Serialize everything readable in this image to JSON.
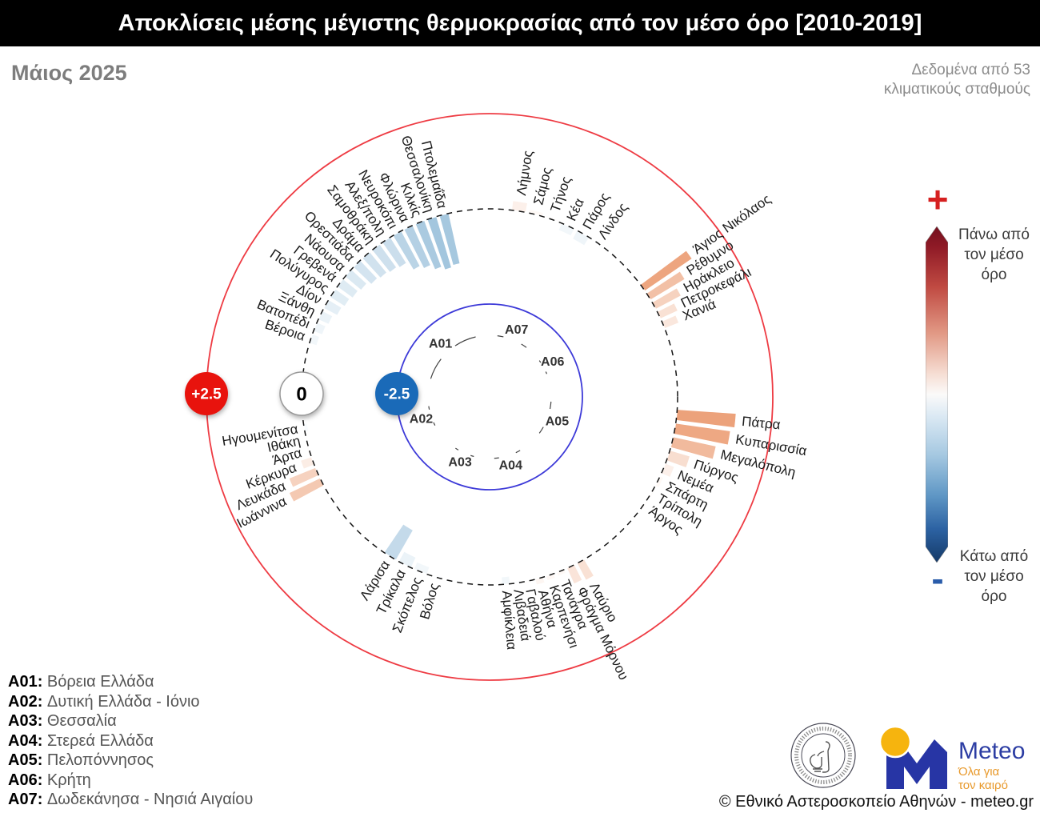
{
  "title": "Αποκλίσεις μέσης μέγιστης θερμοκρασίας από τον μέσο όρο [2010-2019]",
  "subtitle": "Μάιος 2025",
  "data_source": "Δεδομένα από 53 κλιματικούς σταθμούς",
  "scale": {
    "plus": "+",
    "minus": "-",
    "above_label": "Πάνω από τον μέσο όρο",
    "below_label": "Κάτω από τον μέσο όρο"
  },
  "footer": {
    "copyright": "© Εθνικό Αστεροσκοπείο Αθηνών - meteo.gr",
    "meteo_name": "Meteo",
    "meteo_tagline": [
      "Όλα για",
      "τον καιρό"
    ]
  },
  "chart_data": {
    "type": "radial-bar",
    "radial_axis": {
      "min": -2.5,
      "max": 2.5,
      "unit": "°C"
    },
    "rings": [
      {
        "value": 2.5,
        "label": "+2.5",
        "line_color": "#ee3b43",
        "line_style": "solid",
        "badge_bg": "#e8130d",
        "badge_text_color": "#ffffff"
      },
      {
        "value": 0,
        "label": "0",
        "line_color": "#141414",
        "line_style": "dashed",
        "badge_bg": "#ffffff",
        "badge_text_color": "#000000"
      },
      {
        "value": -2.5,
        "label": "-2.5",
        "line_color": "#3d3ad8",
        "line_style": "solid",
        "badge_bg": "#1a6ab8",
        "badge_text_color": "#ffffff"
      }
    ],
    "color_map": {
      "zero": "#ffffff",
      "positive_end": "#e1692a",
      "negative_end": "#5b99c4"
    },
    "regions": [
      {
        "code": "A01",
        "name": "Βόρεια Ελλάδα",
        "angle_start": 286.1,
        "angle_end": 347.9,
        "stations": [
          {
            "name": "Βέροια",
            "value": -0.2
          },
          {
            "name": "Βατοπέδι",
            "value": -0.25
          },
          {
            "name": "Ξάνθη",
            "value": -0.3
          },
          {
            "name": "Δίον",
            "value": -0.4
          },
          {
            "name": "Πολύγυρος",
            "value": -0.45
          },
          {
            "name": "Γρεβενά",
            "value": -0.5
          },
          {
            "name": "Νάουσα",
            "value": -0.55
          },
          {
            "name": "Ορεστιάδα",
            "value": -0.65
          },
          {
            "name": "Δράμα",
            "value": -0.7
          },
          {
            "name": "Σαμοθράκη",
            "value": -0.75
          },
          {
            "name": "Αλεξ/πολη",
            "value": -0.8
          },
          {
            "name": "Νευροκόπι",
            "value": -1.05
          },
          {
            "name": "Φλώρινα",
            "value": -1.15
          },
          {
            "name": "Κιλκίς",
            "value": -1.3
          },
          {
            "name": "Θεσσαλονίκη",
            "value": -1.4
          },
          {
            "name": "Πτολεμαΐδα",
            "value": -1.35
          }
        ]
      },
      {
        "code": "A02",
        "name": "Δυτική Ελλάδα - Ιόνιο",
        "angle_start": 241.4,
        "angle_end": 262.3,
        "stations": [
          {
            "name": "Ιωάννινα",
            "value": 0.9
          },
          {
            "name": "Λευκάδα",
            "value": 0.75
          },
          {
            "name": "Κέρκυρα",
            "value": 0.3
          },
          {
            "name": "Άρτα",
            "value": 0.05
          },
          {
            "name": "Ιθάκη",
            "value": -0.03
          },
          {
            "name": "Ηγουμενίτσα",
            "value": -0.1
          }
        ]
      },
      {
        "code": "A03",
        "name": "Θεσσαλία",
        "angle_start": 193.8,
        "angle_end": 214.6,
        "stations": [
          {
            "name": "Βόλος",
            "value": -0.05
          },
          {
            "name": "Σκόπελος",
            "value": -0.2
          },
          {
            "name": "Τρίκαλα",
            "value": -0.3
          },
          {
            "name": "Λάρισα",
            "value": -0.9
          }
        ]
      },
      {
        "code": "A04",
        "name": "Στερεά Ελλάδα",
        "angle_start": 149.3,
        "angle_end": 176.7,
        "stations": [
          {
            "name": "Λαύριο",
            "value": 0.5
          },
          {
            "name": "Φράγμα Μόρνου",
            "value": 0.45
          },
          {
            "name": "Τανάγρα",
            "value": 0.1
          },
          {
            "name": "Καρπενήσι",
            "value": 0.12
          },
          {
            "name": "Αθήνα",
            "value": 0.15
          },
          {
            "name": "Γαβαλού",
            "value": 0.05
          },
          {
            "name": "Λιβαδειά",
            "value": -0.05
          },
          {
            "name": "Αμφίκλεια",
            "value": -0.2
          }
        ]
      },
      {
        "code": "A05",
        "name": "Πελοπόννησος",
        "angle_start": 93.4,
        "angle_end": 127.1,
        "stations": [
          {
            "name": "Πάτρα",
            "value": 1.55
          },
          {
            "name": "Κυπαρισσία",
            "value": 1.45
          },
          {
            "name": "Μεγαλόπολη",
            "value": 1.15
          },
          {
            "name": "Πύργος",
            "value": 0.55
          },
          {
            "name": "Νεμέα",
            "value": 0.25
          },
          {
            "name": "Σπάρτη",
            "value": 0.1
          },
          {
            "name": "Τρίπολη",
            "value": 0.05
          },
          {
            "name": "Άργος",
            "value": 0.05
          }
        ]
      },
      {
        "code": "A06",
        "name": "Κρήτη",
        "angle_start": 52.9,
        "angle_end": 69.1,
        "stations": [
          {
            "name": "Άγιος Νικόλαος",
            "value": 1.5
          },
          {
            "name": "Ρέθυμνο",
            "value": 1.05
          },
          {
            "name": "Ηράκλειο",
            "value": 0.75
          },
          {
            "name": "Πετροκεφάλι",
            "value": 0.5
          },
          {
            "name": "Χανιά",
            "value": 0.4
          }
        ]
      },
      {
        "code": "A07",
        "name": "Δωδεκάνησα - Νησιά Αιγαίου",
        "angle_start": 6.3,
        "angle_end": 37.7,
        "stations": [
          {
            "name": "Λήμνος",
            "value": 0.25
          },
          {
            "name": "Σάμος",
            "value": 0.1
          },
          {
            "name": "Τήνος",
            "value": 0.05
          },
          {
            "name": "Κέα",
            "value": -0.2
          },
          {
            "name": "Πάρος",
            "value": -0.25
          },
          {
            "name": "Λίνδος",
            "value": -0.05
          }
        ]
      }
    ]
  }
}
